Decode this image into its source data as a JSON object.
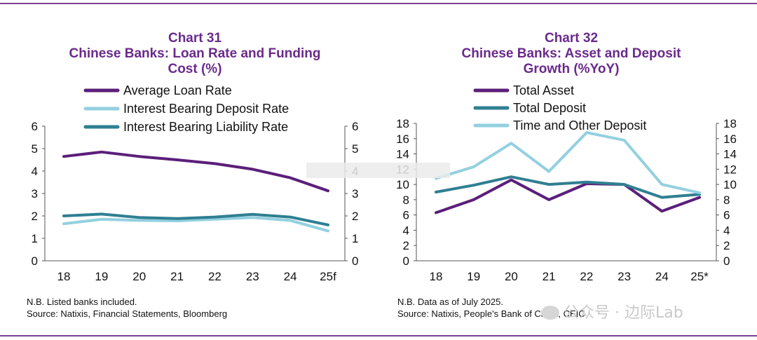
{
  "chart_data": [
    {
      "type": "line",
      "number_label": "Chart 31",
      "title_line1": "Chinese Banks: Loan Rate and Funding",
      "title_line2": "Cost (%)",
      "categories": [
        "18",
        "19",
        "20",
        "21",
        "22",
        "23",
        "24",
        "25f"
      ],
      "ylim": [
        0,
        6
      ],
      "yticks": [
        "0",
        "1",
        "2",
        "3",
        "4",
        "5",
        "6"
      ],
      "series": [
        {
          "name": "Average Loan Rate",
          "color": "#5b1f7a",
          "values": [
            4.65,
            4.85,
            4.65,
            4.5,
            4.33,
            4.08,
            3.7,
            3.12
          ]
        },
        {
          "name": "Interest Bearing Deposit Rate",
          "color": "#93d0e0",
          "values": [
            1.65,
            1.85,
            1.8,
            1.78,
            1.85,
            1.93,
            1.8,
            1.33
          ]
        },
        {
          "name": "Interest Bearing Liability Rate",
          "color": "#2f7f92",
          "values": [
            2.0,
            2.08,
            1.93,
            1.88,
            1.95,
            2.07,
            1.95,
            1.6
          ]
        }
      ],
      "note": "N.B. Listed banks included.",
      "source": "Source: Natixis, Financial Statements, Bloomberg"
    },
    {
      "type": "line",
      "number_label": "Chart 32",
      "title_line1": "Chinese Banks: Asset and Deposit",
      "title_line2": "Growth (%YoY)",
      "categories": [
        "18",
        "19",
        "20",
        "21",
        "22",
        "23",
        "24",
        "25*"
      ],
      "ylim": [
        0,
        18
      ],
      "yticks": [
        "0",
        "2",
        "4",
        "6",
        "8",
        "10",
        "12",
        "14",
        "16",
        "18"
      ],
      "series": [
        {
          "name": "Total Asset",
          "color": "#5b1f7a",
          "values": [
            6.3,
            8.0,
            10.6,
            8.0,
            10.1,
            10.0,
            6.5,
            8.3
          ]
        },
        {
          "name": "Total Deposit",
          "color": "#2f7f92",
          "values": [
            9.0,
            9.9,
            11.0,
            10.0,
            10.3,
            10.0,
            8.3,
            8.7
          ]
        },
        {
          "name": "Time and Other Deposit",
          "color": "#93d0e0",
          "values": [
            10.8,
            12.3,
            15.4,
            11.7,
            16.8,
            15.8,
            10.0,
            8.9
          ]
        }
      ],
      "note": "N.B. Data as of July 2025.",
      "source": "Source: Natixis, People's Bank of China, CEIC"
    }
  ],
  "watermark": "公众号 · 边际Lab"
}
